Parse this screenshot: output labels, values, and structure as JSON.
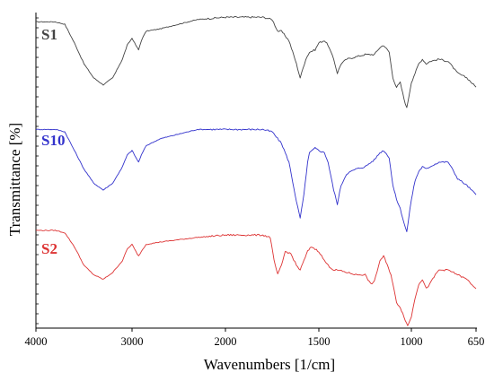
{
  "chart_data": {
    "type": "line",
    "xlabel": "Wavenumbers [1/cm]",
    "ylabel": "Transmittance [%]",
    "x_reversed": true,
    "xlim": [
      4000,
      650
    ],
    "x_ticks": [
      "4000",
      "3000",
      "2000",
      "1500",
      "1000",
      "650"
    ],
    "grid": false,
    "legend": "inline-left",
    "series": [
      {
        "name": "S1",
        "color": "#444444",
        "values": [
          [
            4000,
            96
          ],
          [
            3800,
            96
          ],
          [
            3700,
            95
          ],
          [
            3600,
            87
          ],
          [
            3500,
            78
          ],
          [
            3400,
            72
          ],
          [
            3300,
            69
          ],
          [
            3200,
            72
          ],
          [
            3100,
            80
          ],
          [
            3050,
            86
          ],
          [
            3000,
            89
          ],
          [
            2960,
            86
          ],
          [
            2930,
            84
          ],
          [
            2900,
            88
          ],
          [
            2850,
            92
          ],
          [
            2700,
            93
          ],
          [
            2500,
            95
          ],
          [
            2300,
            97
          ],
          [
            2000,
            98
          ],
          [
            1800,
            98
          ],
          [
            1750,
            97
          ],
          [
            1720,
            92
          ],
          [
            1700,
            92
          ],
          [
            1660,
            88
          ],
          [
            1620,
            78
          ],
          [
            1600,
            72
          ],
          [
            1570,
            80
          ],
          [
            1550,
            83
          ],
          [
            1520,
            84
          ],
          [
            1500,
            87
          ],
          [
            1470,
            88
          ],
          [
            1450,
            86
          ],
          [
            1420,
            80
          ],
          [
            1400,
            74
          ],
          [
            1380,
            78
          ],
          [
            1350,
            80
          ],
          [
            1300,
            81
          ],
          [
            1250,
            82
          ],
          [
            1200,
            82
          ],
          [
            1170,
            85
          ],
          [
            1150,
            86
          ],
          [
            1120,
            83
          ],
          [
            1100,
            72
          ],
          [
            1080,
            68
          ],
          [
            1060,
            70
          ],
          [
            1040,
            63
          ],
          [
            1025,
            59
          ],
          [
            1000,
            70
          ],
          [
            980,
            74
          ],
          [
            960,
            78
          ],
          [
            940,
            80
          ],
          [
            920,
            78
          ],
          [
            900,
            79
          ],
          [
            850,
            80
          ],
          [
            800,
            79
          ],
          [
            750,
            74
          ],
          [
            700,
            72
          ],
          [
            650,
            68
          ]
        ]
      },
      {
        "name": "S10",
        "color": "#3333cc",
        "values": [
          [
            4000,
            96
          ],
          [
            3800,
            96
          ],
          [
            3700,
            95
          ],
          [
            3600,
            87
          ],
          [
            3500,
            79
          ],
          [
            3400,
            73
          ],
          [
            3300,
            70
          ],
          [
            3200,
            73
          ],
          [
            3100,
            80
          ],
          [
            3050,
            85
          ],
          [
            3000,
            87
          ],
          [
            2960,
            84
          ],
          [
            2930,
            82
          ],
          [
            2900,
            85
          ],
          [
            2850,
            89
          ],
          [
            2700,
            92
          ],
          [
            2500,
            94
          ],
          [
            2300,
            96
          ],
          [
            2000,
            96
          ],
          [
            1800,
            96
          ],
          [
            1750,
            95
          ],
          [
            1700,
            90
          ],
          [
            1660,
            82
          ],
          [
            1620,
            65
          ],
          [
            1600,
            58
          ],
          [
            1580,
            68
          ],
          [
            1560,
            82
          ],
          [
            1550,
            86
          ],
          [
            1520,
            88
          ],
          [
            1500,
            87
          ],
          [
            1470,
            86
          ],
          [
            1450,
            82
          ],
          [
            1420,
            70
          ],
          [
            1400,
            64
          ],
          [
            1380,
            72
          ],
          [
            1350,
            77
          ],
          [
            1300,
            79
          ],
          [
            1250,
            80
          ],
          [
            1200,
            83
          ],
          [
            1170,
            86
          ],
          [
            1150,
            87
          ],
          [
            1120,
            84
          ],
          [
            1100,
            72
          ],
          [
            1080,
            66
          ],
          [
            1060,
            62
          ],
          [
            1040,
            56
          ],
          [
            1025,
            52
          ],
          [
            1000,
            66
          ],
          [
            980,
            74
          ],
          [
            960,
            78
          ],
          [
            940,
            80
          ],
          [
            920,
            79
          ],
          [
            900,
            80
          ],
          [
            850,
            82
          ],
          [
            800,
            82
          ],
          [
            750,
            75
          ],
          [
            700,
            72
          ],
          [
            650,
            68
          ]
        ]
      },
      {
        "name": "S2",
        "color": "#dd3333",
        "values": [
          [
            4000,
            95
          ],
          [
            3800,
            95
          ],
          [
            3700,
            94
          ],
          [
            3600,
            88
          ],
          [
            3500,
            80
          ],
          [
            3400,
            76
          ],
          [
            3300,
            74
          ],
          [
            3200,
            77
          ],
          [
            3100,
            82
          ],
          [
            3050,
            87
          ],
          [
            3000,
            89
          ],
          [
            2960,
            86
          ],
          [
            2930,
            84
          ],
          [
            2900,
            86
          ],
          [
            2850,
            89
          ],
          [
            2700,
            90
          ],
          [
            2500,
            91
          ],
          [
            2300,
            92
          ],
          [
            2000,
            93
          ],
          [
            1800,
            93
          ],
          [
            1760,
            92
          ],
          [
            1740,
            82
          ],
          [
            1720,
            76
          ],
          [
            1700,
            80
          ],
          [
            1680,
            86
          ],
          [
            1650,
            85
          ],
          [
            1620,
            80
          ],
          [
            1600,
            78
          ],
          [
            1580,
            82
          ],
          [
            1560,
            86
          ],
          [
            1540,
            88
          ],
          [
            1520,
            87
          ],
          [
            1500,
            86
          ],
          [
            1470,
            82
          ],
          [
            1450,
            80
          ],
          [
            1420,
            78
          ],
          [
            1400,
            78
          ],
          [
            1350,
            77
          ],
          [
            1300,
            76
          ],
          [
            1250,
            76
          ],
          [
            1220,
            72
          ],
          [
            1200,
            73
          ],
          [
            1170,
            82
          ],
          [
            1150,
            84
          ],
          [
            1130,
            80
          ],
          [
            1110,
            76
          ],
          [
            1100,
            72
          ],
          [
            1080,
            64
          ],
          [
            1060,
            62
          ],
          [
            1040,
            58
          ],
          [
            1020,
            54
          ],
          [
            1000,
            58
          ],
          [
            980,
            66
          ],
          [
            960,
            72
          ],
          [
            940,
            74
          ],
          [
            920,
            70
          ],
          [
            900,
            72
          ],
          [
            870,
            76
          ],
          [
            850,
            78
          ],
          [
            800,
            78
          ],
          [
            750,
            76
          ],
          [
            700,
            74
          ],
          [
            650,
            70
          ]
        ]
      }
    ]
  }
}
